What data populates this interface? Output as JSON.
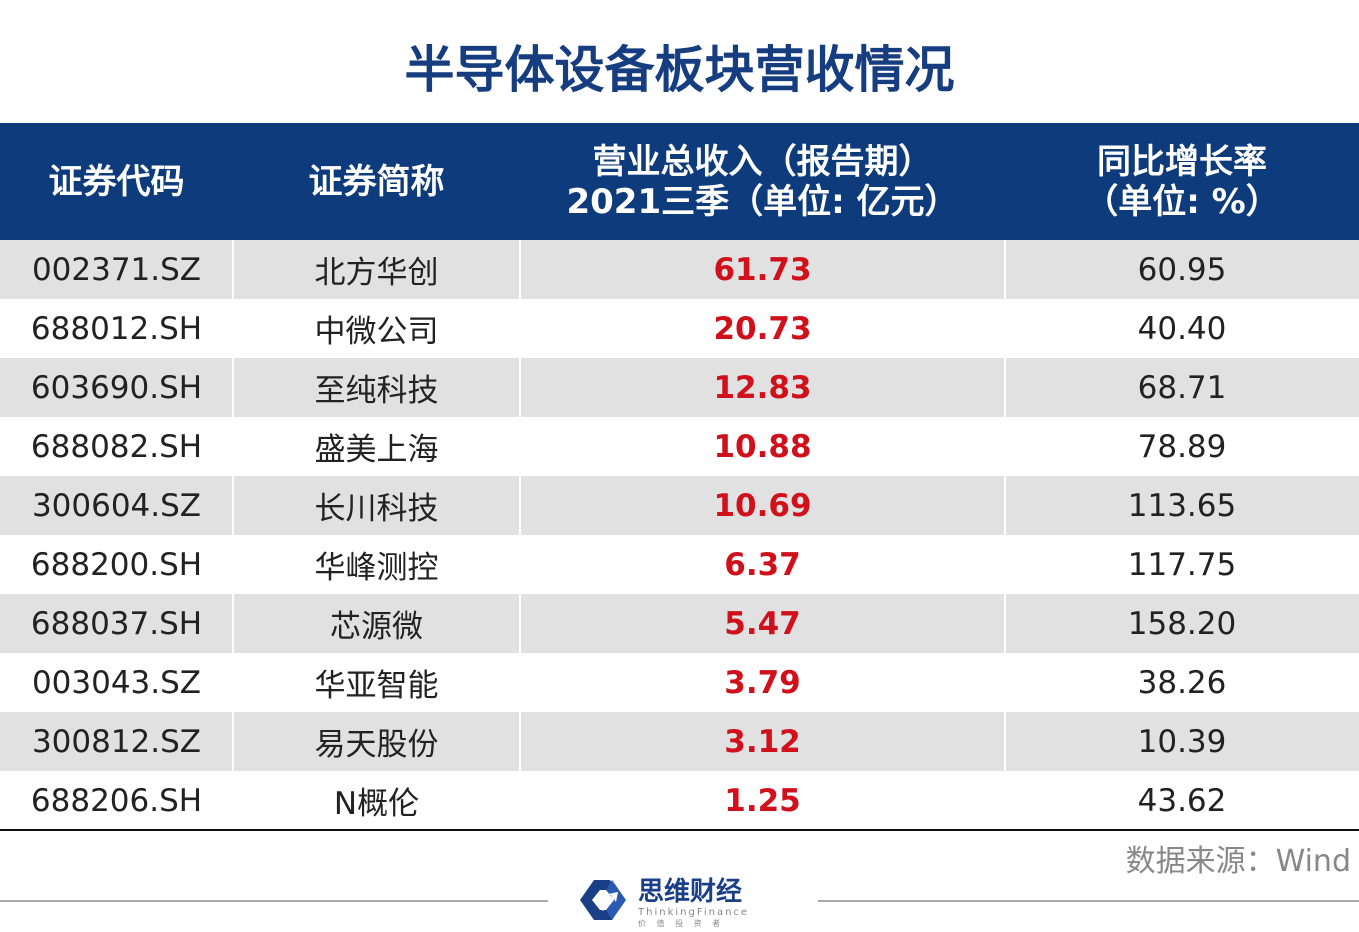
{
  "header": {
    "title": "半导体设备板块营收情况"
  },
  "table": {
    "columns": [
      [
        "证券代码"
      ],
      [
        "证券简称"
      ],
      [
        "营业总收入（报告期）",
        "2021三季（单位: 亿元）"
      ],
      [
        "同比增长率",
        "（单位: %）"
      ]
    ],
    "rows": [
      [
        "002371.SZ",
        "北方华创",
        "61.73",
        "60.95"
      ],
      [
        "688012.SH",
        "中微公司",
        "20.73",
        "40.40"
      ],
      [
        "603690.SH",
        "至纯科技",
        "12.83",
        "68.71"
      ],
      [
        "688082.SH",
        "盛美上海",
        "10.88",
        "78.89"
      ],
      [
        "300604.SZ",
        "长川科技",
        "10.69",
        "113.65"
      ],
      [
        "688200.SH",
        "华峰测控",
        "6.37",
        "117.75"
      ],
      [
        "688037.SH",
        "芯源微",
        "5.47",
        "158.20"
      ],
      [
        "003043.SZ",
        "华亚智能",
        "3.79",
        "38.26"
      ],
      [
        "300812.SZ",
        "易天股份",
        "3.12",
        "10.39"
      ],
      [
        "688206.SH",
        "N概伦",
        "1.25",
        "43.62"
      ]
    ]
  },
  "footer": {
    "source": "数据来源：Wind",
    "logo": {
      "name": "思维财经",
      "english": "ThinkingFinance",
      "slogan": "价 值 投 资 者"
    }
  }
}
